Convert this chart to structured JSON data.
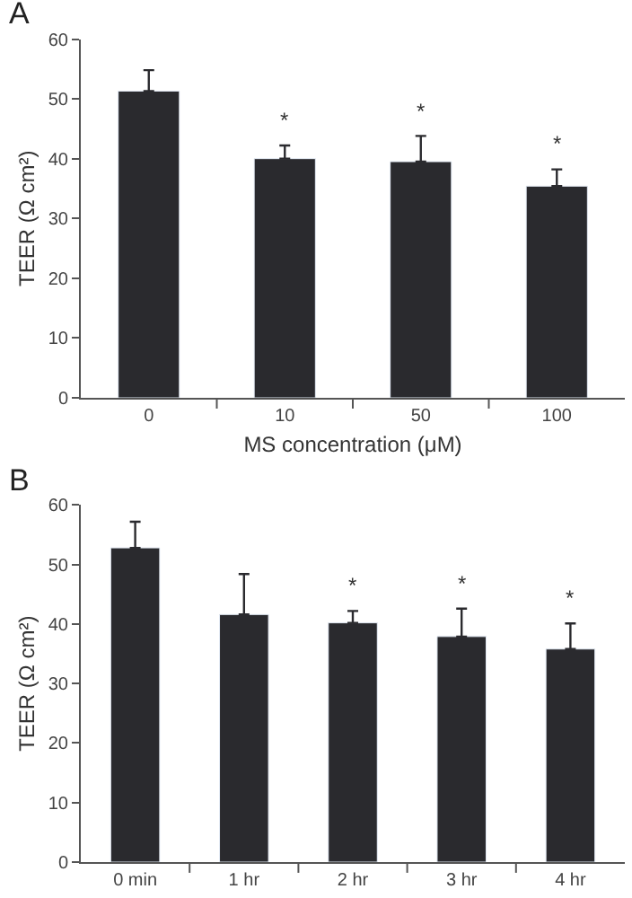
{
  "chart_data": [
    {
      "type": "bar",
      "title": "A",
      "xlabel": "MS concentration (μM)",
      "ylabel": "TEER (Ω cm²)",
      "categories": [
        "0",
        "10",
        "50",
        "100"
      ],
      "values": [
        51.3,
        40.0,
        39.5,
        35.4
      ],
      "errors": [
        [
          51.3,
          54.8
        ],
        [
          40.0,
          42.2
        ],
        [
          39.5,
          43.8
        ],
        [
          35.4,
          38.2
        ]
      ],
      "color": "#2a2a2e",
      "ylim": [
        0,
        60
      ],
      "yticks": [
        0,
        10,
        20,
        30,
        40,
        50,
        60
      ],
      "value_labels": [
        null,
        "*",
        "*",
        "*"
      ]
    },
    {
      "type": "bar",
      "title": "B",
      "ylabel": "TEER (Ω cm²)",
      "categories": [
        "0 min",
        "1 hr",
        "2 hr",
        "3 hr",
        "4 hr"
      ],
      "values": [
        52.8,
        41.6,
        40.2,
        37.9,
        35.8
      ],
      "errors": [
        [
          52.8,
          57.2
        ],
        [
          41.6,
          48.4
        ],
        [
          40.2,
          42.2
        ],
        [
          37.9,
          42.6
        ],
        [
          35.8,
          40.1
        ]
      ],
      "color": "#2a2a2e",
      "ylim": [
        0,
        60
      ],
      "yticks": [
        0,
        10,
        20,
        30,
        40,
        50,
        60
      ],
      "value_labels": [
        null,
        null,
        "*",
        "*",
        "*"
      ]
    }
  ]
}
